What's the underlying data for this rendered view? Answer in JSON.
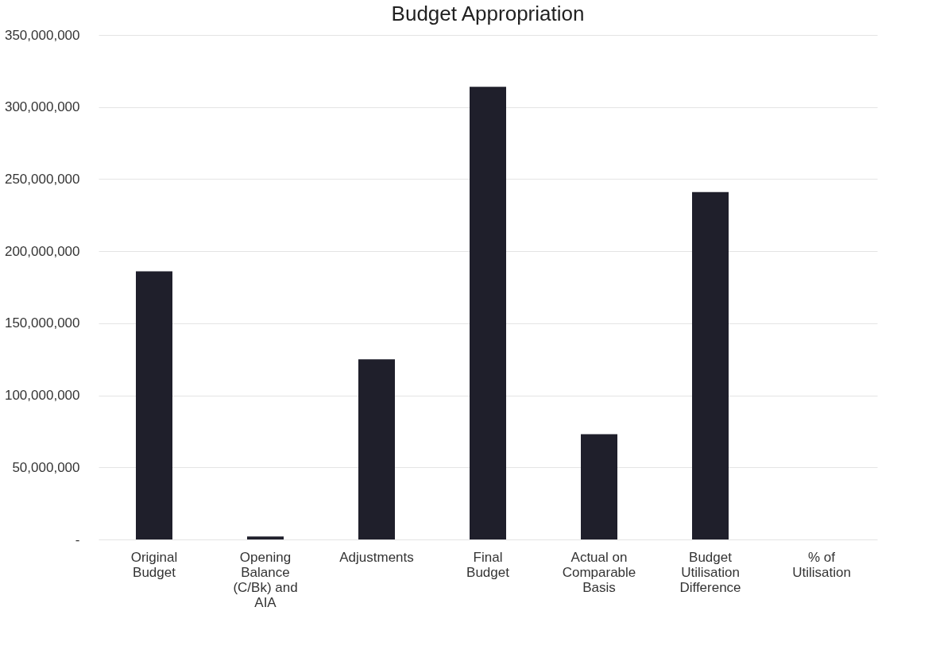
{
  "chart_data": {
    "type": "bar",
    "title": "Budget Appropriation",
    "categories": [
      "Original Budget",
      "Opening Balance (C/Bk) and AIA",
      "Adjustments",
      "Final Budget",
      "Actual on Comparable Basis",
      "Budget Utilisation Difference",
      "% of Utilisation"
    ],
    "values": [
      186000000,
      2000000,
      125000000,
      314000000,
      73000000,
      241000000,
      null
    ],
    "color": "#1f1f2b",
    "ylim": [
      0,
      350000000
    ],
    "yticks": [
      {
        "value": 0,
        "label": "-"
      },
      {
        "value": 50000000,
        "label": "50,000,000"
      },
      {
        "value": 100000000,
        "label": "100,000,000"
      },
      {
        "value": 150000000,
        "label": "150,000,000"
      },
      {
        "value": 200000000,
        "label": "200,000,000"
      },
      {
        "value": 250000000,
        "label": "250,000,000"
      },
      {
        "value": 300000000,
        "label": "300,000,000"
      },
      {
        "value": 350000000,
        "label": "350,000,000"
      }
    ],
    "grid": "y"
  }
}
